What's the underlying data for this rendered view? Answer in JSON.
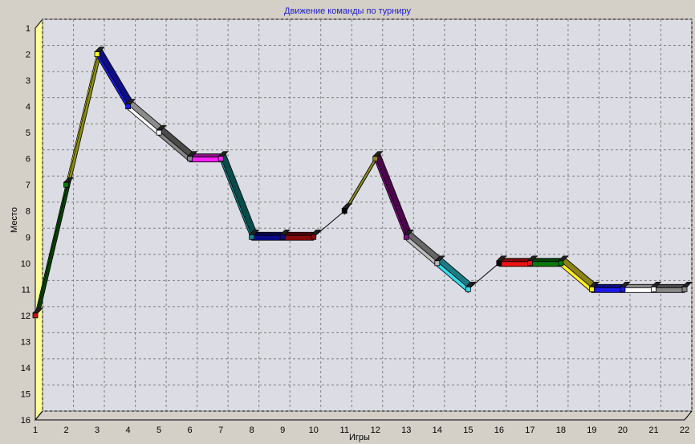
{
  "chart_data": {
    "type": "line",
    "title": "Движение команды по турниру",
    "xlabel": "Игры",
    "ylabel": "Место",
    "x": [
      1,
      2,
      3,
      4,
      5,
      6,
      7,
      8,
      9,
      10,
      11,
      12,
      13,
      14,
      15,
      16,
      17,
      18,
      19,
      20,
      21,
      22
    ],
    "series": [
      {
        "values": [
          12,
          7,
          2,
          4,
          5,
          6,
          6,
          9,
          9,
          9,
          8,
          6,
          9,
          10,
          11,
          10,
          10,
          10,
          11,
          11,
          11,
          11
        ]
      }
    ],
    "segment_colors": [
      "#0a7a0a",
      "#ffff22",
      "#1a1aee",
      "#ffffff",
      "#888888",
      "#ff22ff",
      "#118888",
      "#0a0a88",
      "#880a0a",
      "#000000",
      "#888822",
      "#880a88",
      "#bbbbbb",
      "#33ddee",
      "#000000",
      "#ee1111",
      "#0a7a0a",
      "#ffee22",
      "#1a1aee",
      "#ffffff",
      "#888888"
    ],
    "xlim": [
      1,
      22
    ],
    "ylim": [
      16,
      1
    ],
    "y_inverted": true,
    "grid": true,
    "colors": {
      "background": "#d4d0c8",
      "plot_area": "#ffffff",
      "grid": "#808080",
      "axis_wall": "#ffff99",
      "title": "#1c1ccc"
    }
  }
}
